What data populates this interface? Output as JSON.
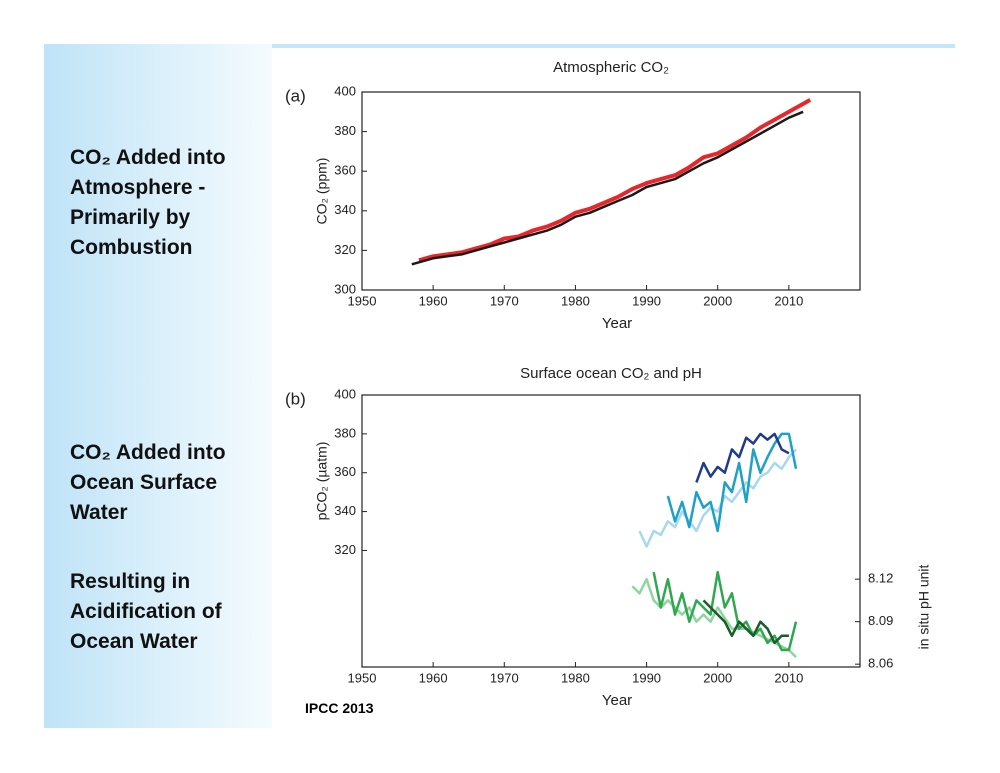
{
  "slide": {
    "labels": [
      "CO₂ Added into Atmosphere - Primarily by Combustion",
      "CO₂ Added into Ocean Surface Water",
      "Resulting in Acidification of Ocean Water"
    ],
    "credit": "IPCC 2013"
  },
  "chart_data": [
    {
      "type": "line",
      "title": "Atmospheric CO₂",
      "annotation": "(a)",
      "xlabel": "Year",
      "ylabel": "CO₂ (ppm)",
      "xlim": [
        1950,
        2020
      ],
      "xticks": [
        1950,
        1960,
        1970,
        1980,
        1990,
        2000,
        2010
      ],
      "ylim": [
        300,
        400
      ],
      "yticks": [
        300,
        320,
        340,
        360,
        380,
        400
      ],
      "series": [
        {
          "color": "#e8262b",
          "x": [
            1958,
            1960,
            1962,
            1964,
            1966,
            1968,
            1970,
            1972,
            1974,
            1976,
            1978,
            1980,
            1982,
            1984,
            1986,
            1988,
            1990,
            1992,
            1994,
            1996,
            1998,
            2000,
            2002,
            2004,
            2006,
            2008,
            2010,
            2012,
            2013
          ],
          "values": [
            315,
            317,
            318,
            319,
            321,
            323,
            326,
            327,
            330,
            332,
            335,
            339,
            341,
            344,
            347,
            351,
            354,
            356,
            358,
            362,
            367,
            369,
            373,
            377,
            382,
            386,
            390,
            394,
            396
          ]
        },
        {
          "color": "#1a1a1a",
          "x": [
            1957,
            1960,
            1962,
            1964,
            1966,
            1968,
            1970,
            1972,
            1974,
            1976,
            1978,
            1980,
            1982,
            1984,
            1986,
            1988,
            1990,
            1992,
            1994,
            1996,
            1998,
            2000,
            2002,
            2004,
            2006,
            2008,
            2010,
            2012
          ],
          "values": [
            313,
            316,
            317,
            318,
            320,
            322,
            324,
            326,
            328,
            330,
            333,
            337,
            339,
            342,
            345,
            348,
            352,
            354,
            356,
            360,
            364,
            367,
            371,
            375,
            379,
            383,
            387,
            390
          ]
        }
      ]
    },
    {
      "type": "line",
      "title": "Surface ocean CO₂ and pH",
      "annotation": "(b)",
      "xlabel": "Year",
      "ylabel": "pCO₂ (µatm)",
      "y2label": "in situ pH unit",
      "xlim": [
        1950,
        2020
      ],
      "xticks": [
        1950,
        1960,
        1970,
        1980,
        1990,
        2000,
        2010
      ],
      "ylim": [
        260,
        400
      ],
      "yticks": [
        320,
        340,
        360,
        380,
        400
      ],
      "y2lim": [
        8.058,
        8.25
      ],
      "y2ticks": [
        8.06,
        8.09,
        8.12
      ],
      "series": [
        {
          "color": "#a8d8ef",
          "x": [
            1989,
            1990,
            1991,
            1992,
            1993,
            1994,
            1995,
            1996,
            1997,
            1998,
            1999,
            2000,
            2001,
            2002,
            2003,
            2004,
            2005,
            2006,
            2007,
            2008,
            2009,
            2010,
            2011
          ],
          "values": [
            330,
            322,
            330,
            328,
            335,
            332,
            340,
            335,
            330,
            338,
            342,
            340,
            348,
            345,
            350,
            355,
            352,
            358,
            360,
            365,
            362,
            368,
            372
          ]
        },
        {
          "color": "#1ea0c8",
          "x": [
            1993,
            1994,
            1995,
            1996,
            1997,
            1998,
            1999,
            2000,
            2001,
            2002,
            2003,
            2004,
            2005,
            2006,
            2007,
            2008,
            2009,
            2010,
            2011
          ],
          "values": [
            348,
            335,
            345,
            332,
            350,
            342,
            345,
            330,
            355,
            350,
            365,
            345,
            372,
            360,
            368,
            375,
            380,
            380,
            362
          ]
        },
        {
          "color": "#1d3b8f",
          "x": [
            1997,
            1998,
            1999,
            2000,
            2001,
            2002,
            2003,
            2004,
            2005,
            2006,
            2007,
            2008,
            2009,
            2010
          ],
          "values": [
            355,
            365,
            358,
            363,
            360,
            372,
            368,
            378,
            375,
            380,
            377,
            380,
            372,
            370
          ]
        },
        {
          "color": "#90d4a0",
          "axis": "y2",
          "x": [
            1988,
            1989,
            1990,
            1991,
            1992,
            1993,
            1994,
            1995,
            1996,
            1997,
            1998,
            1999,
            2000,
            2002,
            2004,
            2006,
            2008,
            2010,
            2011
          ],
          "values": [
            8.115,
            8.11,
            8.12,
            8.105,
            8.1,
            8.105,
            8.1,
            8.095,
            8.1,
            8.09,
            8.095,
            8.09,
            8.1,
            8.085,
            8.085,
            8.08,
            8.075,
            8.07,
            8.065
          ]
        },
        {
          "color": "#2fa84f",
          "axis": "y2",
          "x": [
            1991,
            1992,
            1993,
            1994,
            1995,
            1996,
            1997,
            1998,
            1999,
            2000,
            2001,
            2002,
            2003,
            2004,
            2005,
            2006,
            2007,
            2008,
            2009,
            2010,
            2011
          ],
          "values": [
            8.125,
            8.1,
            8.12,
            8.095,
            8.11,
            8.09,
            8.105,
            8.1,
            8.095,
            8.125,
            8.1,
            8.11,
            8.085,
            8.09,
            8.08,
            8.085,
            8.075,
            8.08,
            8.07,
            8.07,
            8.09
          ]
        },
        {
          "color": "#1a5c2a",
          "axis": "y2",
          "x": [
            1998,
            1999,
            2000,
            2001,
            2002,
            2003,
            2004,
            2005,
            2006,
            2007,
            2008,
            2009,
            2010
          ],
          "values": [
            8.105,
            8.1,
            8.095,
            8.09,
            8.08,
            8.09,
            8.085,
            8.08,
            8.09,
            8.085,
            8.075,
            8.08,
            8.08
          ]
        }
      ]
    }
  ]
}
